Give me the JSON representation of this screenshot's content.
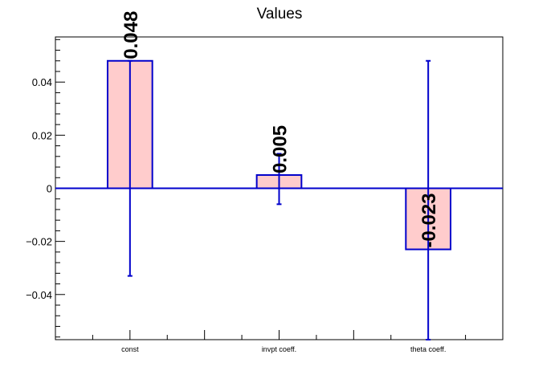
{
  "chart_data": {
    "type": "bar",
    "title": "Values",
    "xlabel": "",
    "ylabel": "",
    "categories": [
      "const",
      "invpt coeff.",
      "theta coeff."
    ],
    "values": [
      0.048,
      0.005,
      -0.023
    ],
    "data_labels": [
      "0.048",
      "0.005",
      "-0.023"
    ],
    "error_low": [
      -0.033,
      -0.006,
      -0.057
    ],
    "error_high": [
      0.048,
      0.013,
      0.048
    ],
    "ylim": [
      -0.057,
      0.057
    ],
    "y_ticks": [
      -0.04,
      -0.02,
      0,
      0.02,
      0.04
    ],
    "y_tick_labels": [
      "−0.04",
      "−0.02",
      "0",
      "0.02",
      "0.04"
    ],
    "grid": false,
    "colors": {
      "bar_fill": "#ffcccc",
      "bar_stroke": "#0000cc",
      "error_bar": "#0000cc",
      "zero_line": "#0000cc",
      "axis": "#000000"
    }
  }
}
